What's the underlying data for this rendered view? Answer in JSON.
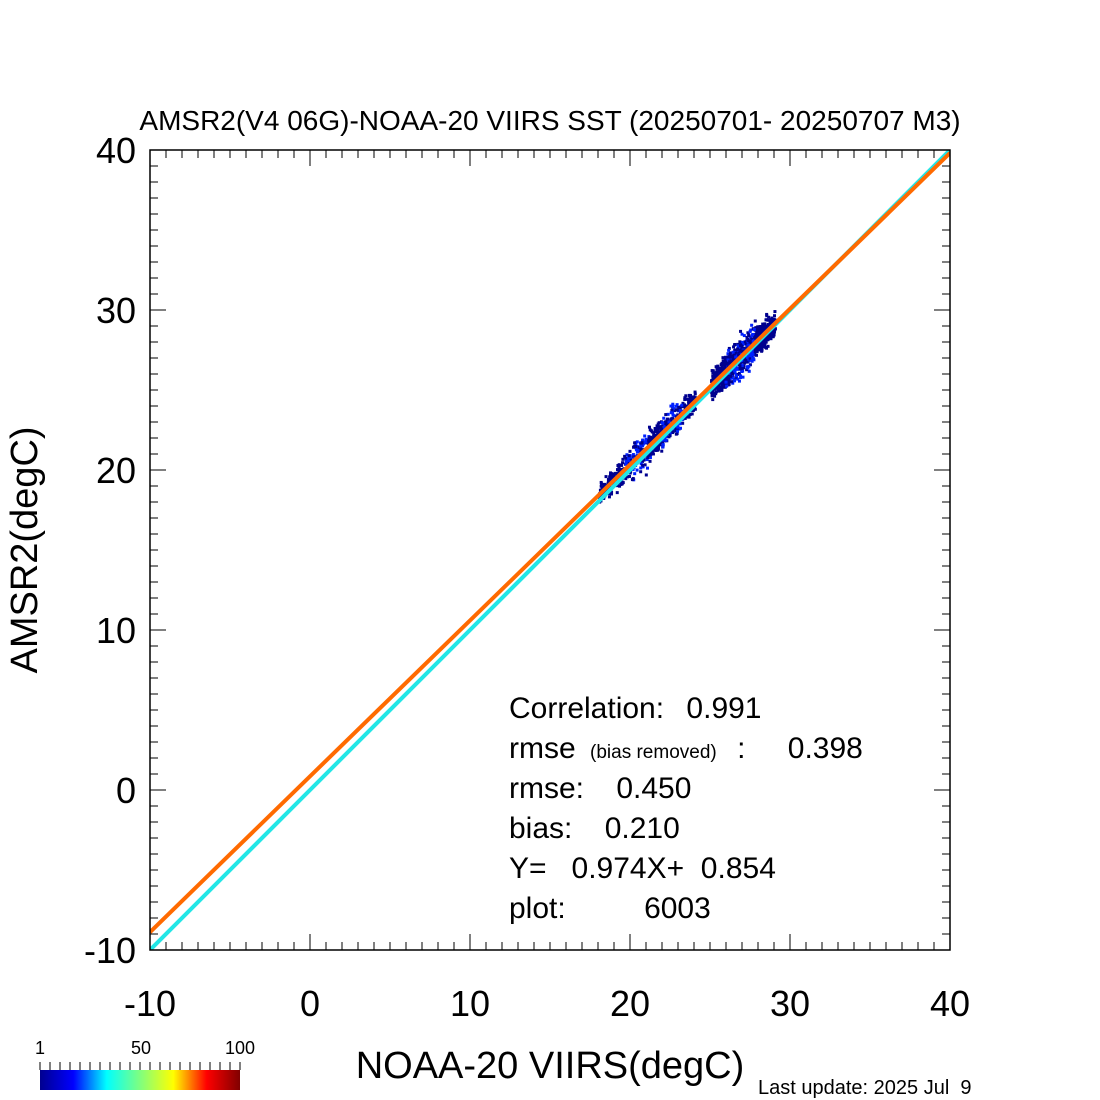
{
  "chart_data": {
    "type": "scatter",
    "title": "AMSR2(V4 06G)-NOAA-20 VIIRS SST (20250701- 20250707 M3)",
    "xlabel": "NOAA-20 VIIRS(degC)",
    "ylabel": "AMSR2(degC)",
    "xlim": [
      -10,
      40
    ],
    "ylim": [
      -10,
      40
    ],
    "x_ticks": [
      "-10",
      "0",
      "10",
      "20",
      "30",
      "40"
    ],
    "y_ticks": [
      "-10",
      "0",
      "10",
      "20",
      "30",
      "40"
    ],
    "grid": false,
    "density_clusters": [
      {
        "x_center": 20.5,
        "x_range": [
          18.0,
          22.0
        ],
        "y_scatter": 0.55,
        "count": 420
      },
      {
        "x_center": 22.5,
        "x_range": [
          21.0,
          24.0
        ],
        "y_scatter": 0.5,
        "count": 380
      },
      {
        "x_center": 26.8,
        "x_range": [
          25.0,
          29.0
        ],
        "y_scatter": 0.6,
        "count": 1000
      }
    ],
    "lines": [
      {
        "name": "one-to-one",
        "slope": 1.0,
        "intercept": 0.0,
        "color": "#22e6e6"
      },
      {
        "name": "regression",
        "slope": 0.974,
        "intercept": 0.854,
        "color": "#ff6a00"
      }
    ],
    "stats": {
      "correlation_label": "Correlation:",
      "correlation_value": "0.991",
      "rmse_br_label": "rmse",
      "rmse_br_note": "(bias removed)",
      "rmse_br_sep": ":",
      "rmse_br_value": "0.398",
      "rmse_label": "rmse:",
      "rmse_value": "0.450",
      "bias_label": "bias:",
      "bias_value": "0.210",
      "fit_text": "Y=   0.974X+  0.854",
      "plot_label": "plot:",
      "plot_value": "6003"
    },
    "colorbar": {
      "labels": [
        "1",
        "50",
        "100"
      ],
      "colors": [
        "#00008f",
        "#0000ff",
        "#00ffff",
        "#7fff7f",
        "#ffff00",
        "#ff0000",
        "#800000"
      ]
    },
    "last_update": "Last update: 2025 Jul  9"
  }
}
